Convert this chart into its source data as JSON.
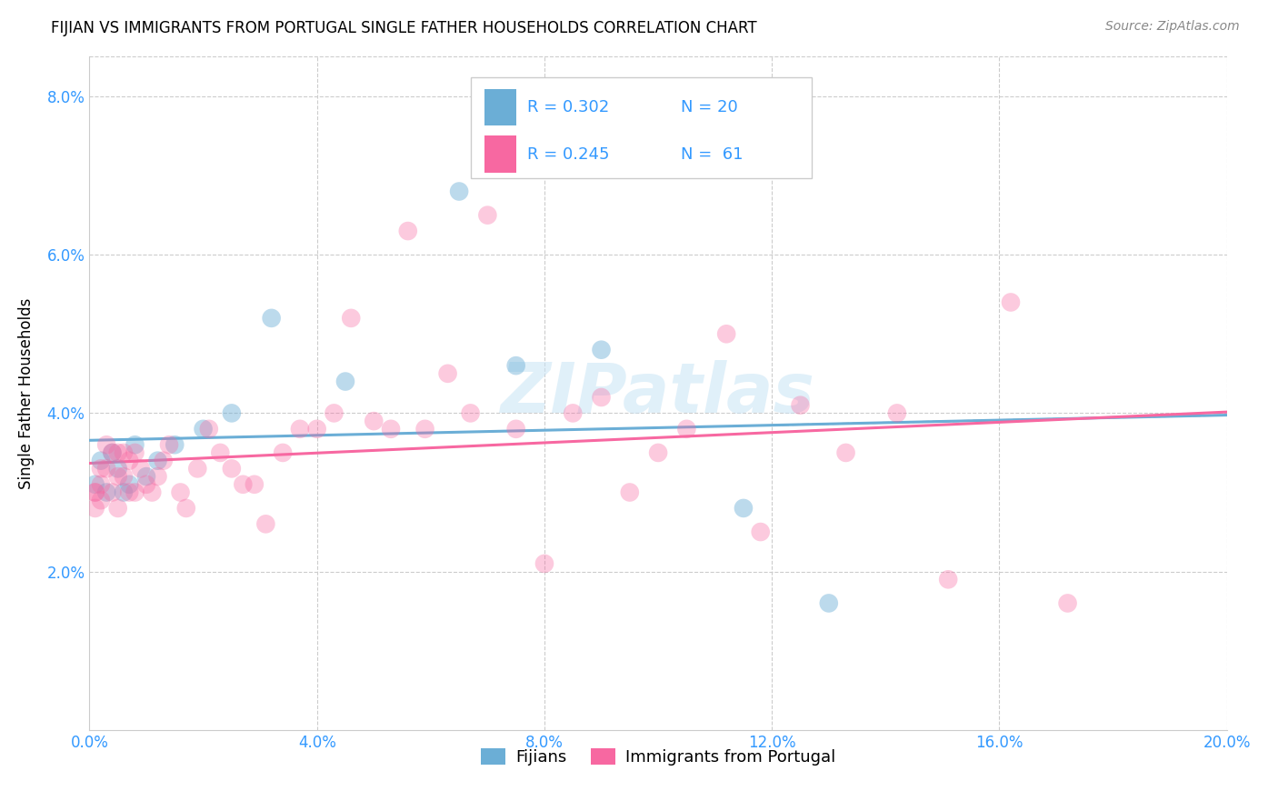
{
  "title": "FIJIAN VS IMMIGRANTS FROM PORTUGAL SINGLE FATHER HOUSEHOLDS CORRELATION CHART",
  "source": "Source: ZipAtlas.com",
  "ylabel": "Single Father Households",
  "xlim": [
    0.0,
    0.2
  ],
  "ylim": [
    0.0,
    0.085
  ],
  "xticks": [
    0.0,
    0.04,
    0.08,
    0.12,
    0.16,
    0.2
  ],
  "yticks": [
    0.02,
    0.04,
    0.06,
    0.08
  ],
  "xtick_labels": [
    "0.0%",
    "4.0%",
    "8.0%",
    "12.0%",
    "16.0%",
    "20.0%"
  ],
  "ytick_labels": [
    "2.0%",
    "4.0%",
    "6.0%",
    "8.0%"
  ],
  "fijian_color": "#6baed6",
  "portugal_color": "#f768a1",
  "fijian_R": 0.302,
  "fijian_N": 20,
  "portugal_R": 0.245,
  "portugal_N": 61,
  "legend_text_color": "#3399ff",
  "axis_tick_color": "#3399ff",
  "watermark": "ZIPatlas",
  "fijian_x": [
    0.001,
    0.002,
    0.003,
    0.004,
    0.005,
    0.006,
    0.007,
    0.008,
    0.01,
    0.012,
    0.015,
    0.02,
    0.025,
    0.032,
    0.045,
    0.065,
    0.075,
    0.09,
    0.115,
    0.13
  ],
  "fijian_y": [
    0.031,
    0.034,
    0.03,
    0.035,
    0.033,
    0.03,
    0.031,
    0.036,
    0.032,
    0.034,
    0.036,
    0.038,
    0.04,
    0.052,
    0.044,
    0.068,
    0.046,
    0.048,
    0.028,
    0.016
  ],
  "portugal_x": [
    0.001,
    0.001,
    0.001,
    0.002,
    0.002,
    0.002,
    0.003,
    0.003,
    0.004,
    0.004,
    0.005,
    0.005,
    0.005,
    0.006,
    0.006,
    0.007,
    0.007,
    0.008,
    0.008,
    0.009,
    0.01,
    0.011,
    0.012,
    0.013,
    0.014,
    0.016,
    0.017,
    0.019,
    0.021,
    0.023,
    0.025,
    0.027,
    0.029,
    0.031,
    0.034,
    0.037,
    0.04,
    0.043,
    0.046,
    0.05,
    0.053,
    0.056,
    0.059,
    0.063,
    0.067,
    0.07,
    0.075,
    0.08,
    0.085,
    0.09,
    0.095,
    0.1,
    0.105,
    0.112,
    0.118,
    0.125,
    0.133,
    0.142,
    0.151,
    0.162,
    0.172
  ],
  "portugal_y": [
    0.03,
    0.03,
    0.028,
    0.033,
    0.031,
    0.029,
    0.036,
    0.033,
    0.035,
    0.03,
    0.035,
    0.028,
    0.032,
    0.035,
    0.032,
    0.034,
    0.03,
    0.035,
    0.03,
    0.033,
    0.031,
    0.03,
    0.032,
    0.034,
    0.036,
    0.03,
    0.028,
    0.033,
    0.038,
    0.035,
    0.033,
    0.031,
    0.031,
    0.026,
    0.035,
    0.038,
    0.038,
    0.04,
    0.052,
    0.039,
    0.038,
    0.063,
    0.038,
    0.045,
    0.04,
    0.065,
    0.038,
    0.021,
    0.04,
    0.042,
    0.03,
    0.035,
    0.038,
    0.05,
    0.025,
    0.041,
    0.035,
    0.04,
    0.019,
    0.054,
    0.016
  ]
}
